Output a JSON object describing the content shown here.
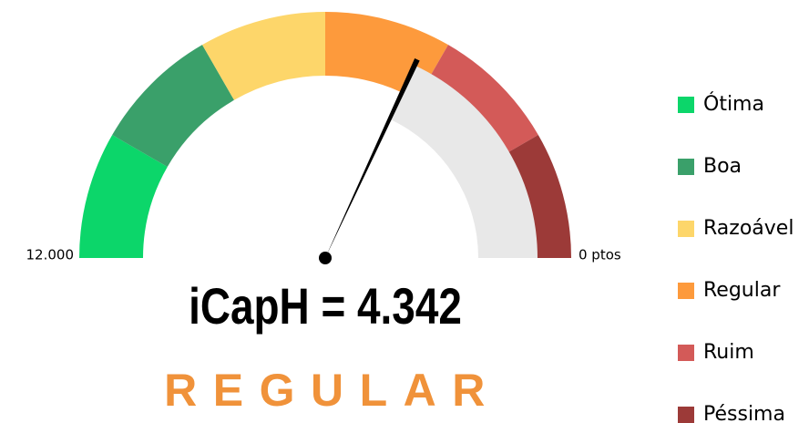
{
  "chart_data": {
    "type": "gauge",
    "xlim": [
      12000,
      0
    ],
    "xticks": [
      {
        "value": 12000,
        "label": "12.000"
      },
      {
        "value": 0,
        "label": "0 ptos"
      }
    ],
    "value": 4342,
    "value_label": "iCapH = 4.342",
    "status": "REGULAR",
    "status_color": "#f0923a",
    "track_color": "#e8e8e8",
    "bands": [
      {
        "name": "Ótima",
        "color": "#0cd66a",
        "from": 12000,
        "to": 10000
      },
      {
        "name": "Boa",
        "color": "#3aa06a",
        "from": 10000,
        "to": 8000
      },
      {
        "name": "Razoável",
        "color": "#fdd66a",
        "from": 8000,
        "to": 6000
      },
      {
        "name": "Regular",
        "color": "#fd9a3c",
        "from": 6000,
        "to": 4000
      },
      {
        "name": "Ruim",
        "color": "#d35a58",
        "from": 4000,
        "to": 2000
      },
      {
        "name": "Péssima",
        "color": "#9c3a38",
        "from": 2000,
        "to": 0
      }
    ]
  }
}
